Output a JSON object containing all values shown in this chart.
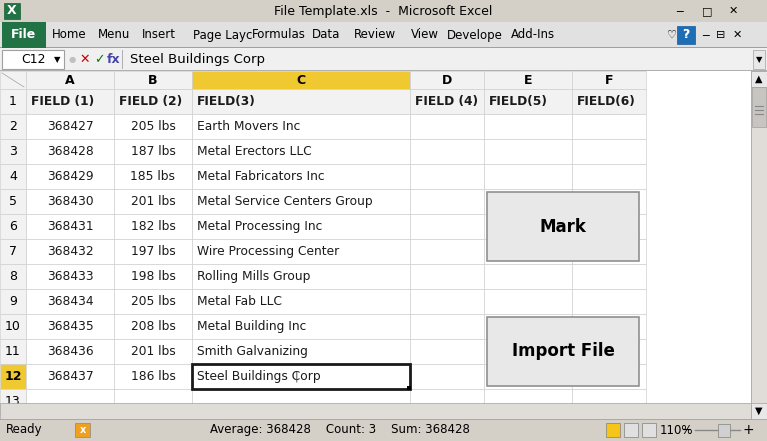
{
  "title": "File Template.xls  -  Microsoft Excel",
  "cell_ref": "C12",
  "formula_bar_text": "Steel Buildings Corp",
  "col_headers": [
    "A",
    "B",
    "C",
    "D",
    "E",
    "F"
  ],
  "field_headers": [
    "FIELD (1)",
    "FIELD (2)",
    "FIELD(3)",
    "FIELD (4)",
    "FIELD(5)",
    "FIELD(6)"
  ],
  "col_a": [
    "368427",
    "368428",
    "368429",
    "368430",
    "368431",
    "368432",
    "368433",
    "368434",
    "368435",
    "368436",
    "368437"
  ],
  "col_b": [
    "205 lbs",
    "187 lbs",
    "185 lbs",
    "201 lbs",
    "182 lbs",
    "197 lbs",
    "198 lbs",
    "205 lbs",
    "208 lbs",
    "201 lbs",
    "186 lbs"
  ],
  "col_c": [
    "Earth Movers Inc",
    "Metal Erectors LLC",
    "Metal Fabricators Inc",
    "Metal Service Centers Group",
    "Metal Processing Inc",
    "Wire Processing Center",
    "Rolling Mills Group",
    "Metal Fab LLC",
    "Metal Building Inc",
    "Smith Galvanizing",
    "Steel Buildings Corp"
  ],
  "bg_color": "#d4d0c8",
  "title_bar_bg": "#d4d0c8",
  "ribbon_bg": "#e1e1e1",
  "file_tab_color": "#217346",
  "col_c_header_bg": "#f0c830",
  "selected_row_num_bg": "#f0c830",
  "grid_color": "#d0d0d0",
  "header_cell_bg": "#f2f2f2",
  "data_cell_bg": "#ffffff",
  "button_bg": "#e8e8e8",
  "status_bar_bg": "#d4d0c8",
  "scrollbar_bg": "#e0ddd8",
  "tab_labels": [
    "Home",
    "Menu",
    "Insert",
    "Page Layc",
    "Formulas",
    "Data",
    "Review",
    "View",
    "Develope",
    "Add-Ins"
  ]
}
